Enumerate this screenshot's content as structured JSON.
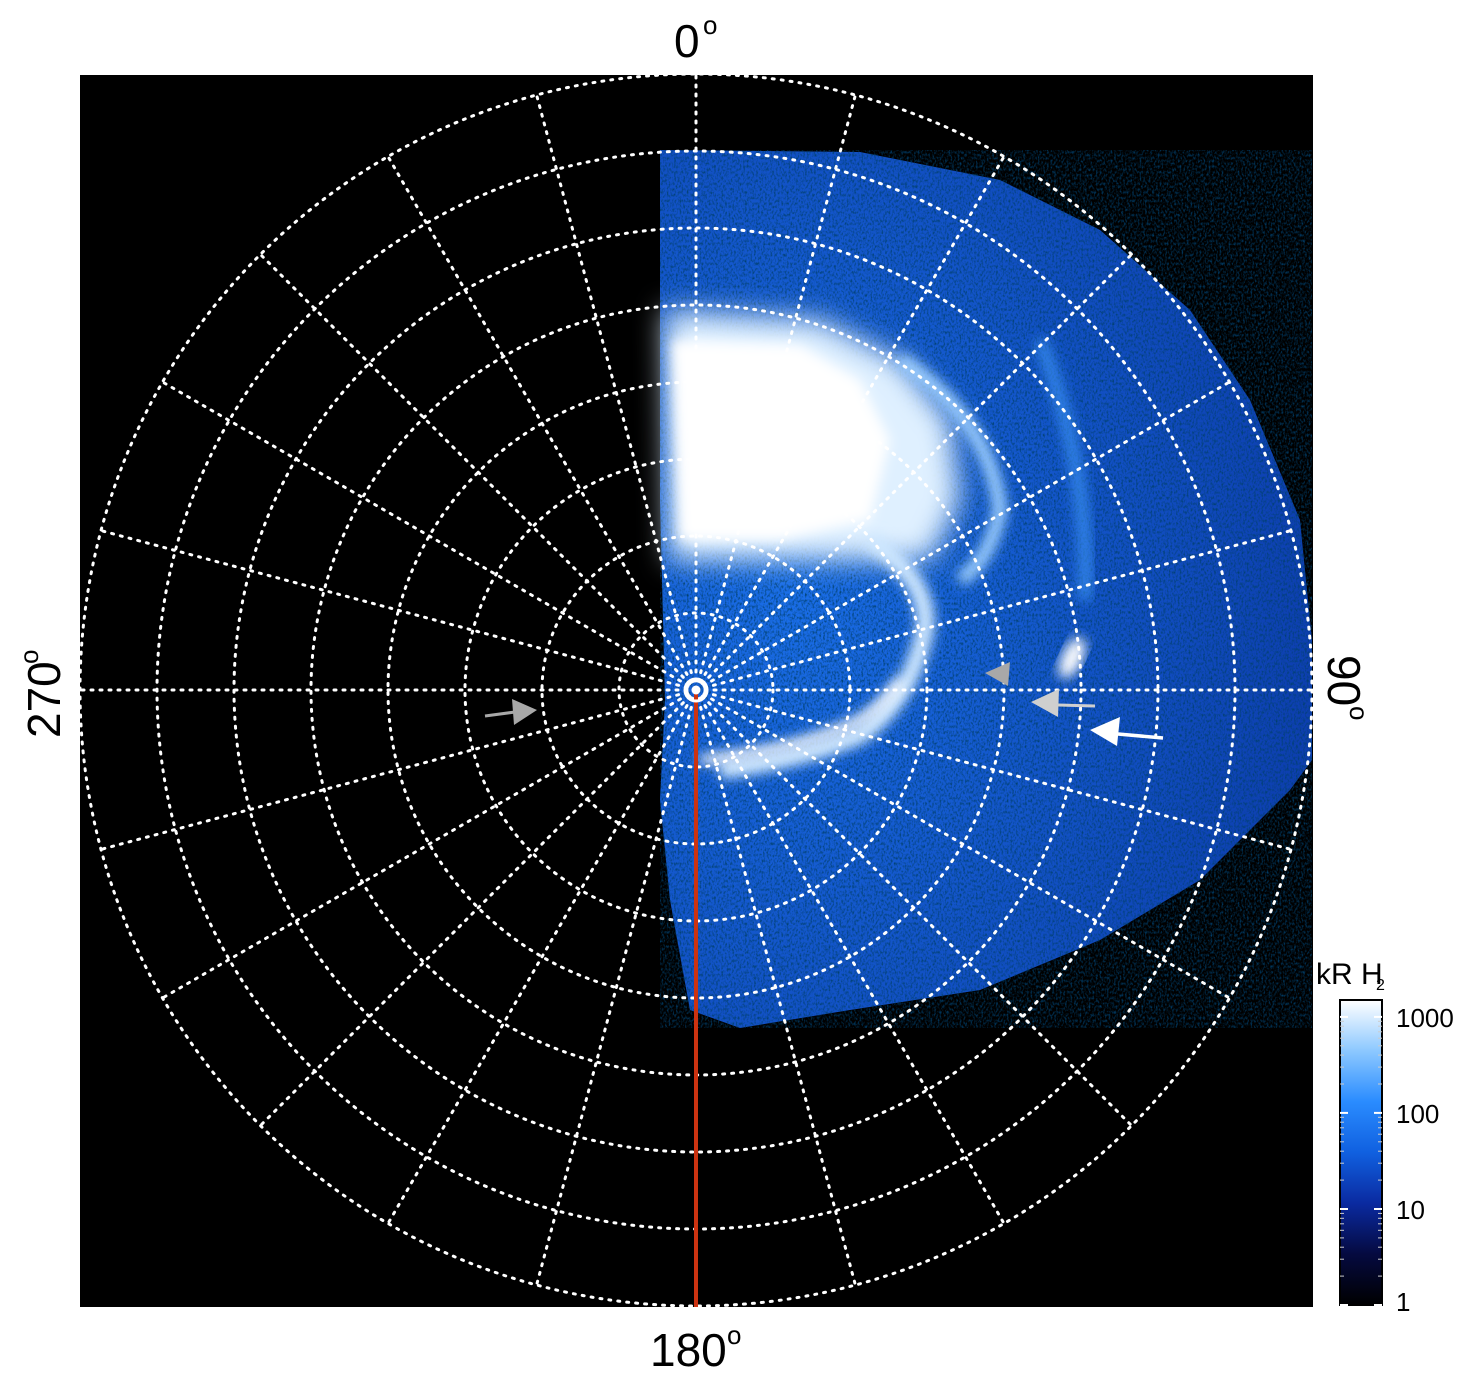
{
  "azimuth_labels": {
    "top": "0",
    "right": "90",
    "bottom": "180",
    "left": "270",
    "degree_symbol": "o"
  },
  "colorbar": {
    "title_main": "kR H",
    "title_sub": "2",
    "ticks": [
      "1000",
      "100",
      "10",
      "1"
    ],
    "tick_values": [
      1000,
      100,
      10,
      1
    ],
    "range": [
      1,
      1500
    ],
    "scale": "log",
    "colors": [
      "#000000",
      "#050a40",
      "#0a2aa0",
      "#1060e0",
      "#2a8cff",
      "#8cc8ff",
      "#ffffff"
    ]
  },
  "grid": {
    "rings": 8,
    "spokes_deg": 15,
    "color": "#ffffff",
    "style": "dotted"
  },
  "colors": {
    "background": "#000000",
    "meridian_line": "#cc3311",
    "arrow_white": "#ffffff",
    "arrow_gray": "#a8a8a8"
  }
}
